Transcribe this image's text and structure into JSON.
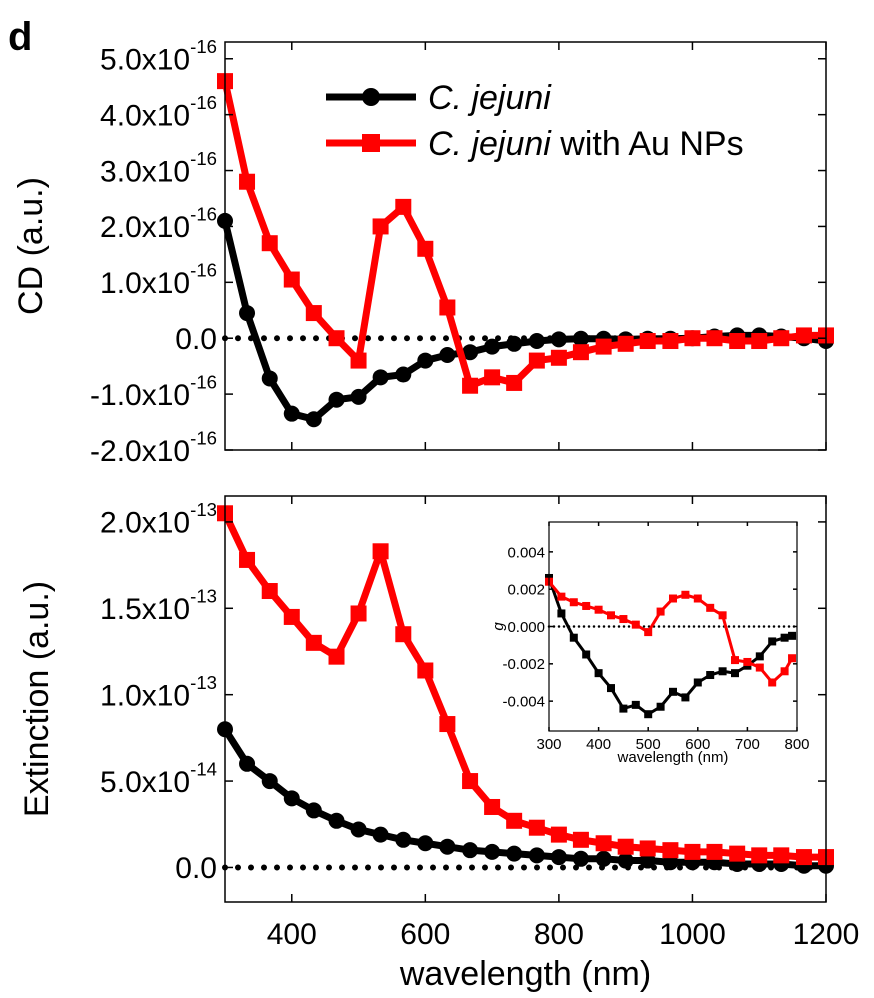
{
  "panel_label": "d",
  "colors": {
    "series_black": "#000000",
    "series_red": "#ff0000",
    "axis": "#000000"
  },
  "legend": {
    "entries": [
      {
        "italic": "C. jejuni",
        "rest": ""
      },
      {
        "italic": "C. jejuni",
        "rest": " with Au NPs"
      }
    ],
    "placement": "top-right"
  },
  "chart_data": [
    {
      "id": "cd",
      "type": "line",
      "ylabel": "CD (a.u.)",
      "xlabel": "",
      "xlim": [
        300,
        1200
      ],
      "ylim": [
        -2e-16,
        5.3e-16
      ],
      "x_ticks": [
        400,
        600,
        800,
        1000,
        1200
      ],
      "y_ticks": [
        {
          "value": 5e-16,
          "mant": "5.0x10",
          "exp": "-16"
        },
        {
          "value": 4e-16,
          "mant": "4.0x10",
          "exp": "-16"
        },
        {
          "value": 3e-16,
          "mant": "3.0x10",
          "exp": "-16"
        },
        {
          "value": 2e-16,
          "mant": "2.0x10",
          "exp": "-16"
        },
        {
          "value": 1e-16,
          "mant": "1.0x10",
          "exp": "-16"
        },
        {
          "value": 0,
          "mant": "0.0",
          "exp": ""
        },
        {
          "value": -1e-16,
          "mant": "-1.0x10",
          "exp": "-16"
        },
        {
          "value": -2e-16,
          "mant": "-2.0x10",
          "exp": "-16"
        }
      ],
      "zero_line": true,
      "series": [
        {
          "color_key": "series_black",
          "marker": "circle",
          "x": [
            300,
            333,
            367,
            400,
            433,
            467,
            500,
            533,
            567,
            600,
            633,
            667,
            700,
            733,
            767,
            800,
            833,
            867,
            900,
            933,
            967,
            1000,
            1033,
            1067,
            1100,
            1133,
            1167,
            1200
          ],
          "y": [
            2.1e-16,
            4.5e-17,
            -7.2e-17,
            -1.35e-16,
            -1.45e-16,
            -1.1e-16,
            -1.05e-16,
            -7e-17,
            -6.5e-17,
            -4e-17,
            -3e-17,
            -2.5e-17,
            -1.5e-17,
            -1e-17,
            -5e-18,
            -2e-18,
            -1e-18,
            -1e-18,
            -2e-18,
            -1e-18,
            -1e-18,
            0.0,
            3e-18,
            5e-18,
            5e-18,
            3e-18,
            0.0,
            -5e-18
          ]
        },
        {
          "color_key": "series_red",
          "marker": "square",
          "x": [
            300,
            333,
            367,
            400,
            433,
            467,
            500,
            533,
            567,
            600,
            633,
            667,
            700,
            733,
            767,
            800,
            833,
            867,
            900,
            933,
            967,
            1000,
            1033,
            1067,
            1100,
            1133,
            1167,
            1200
          ],
          "y": [
            4.6e-16,
            2.8e-16,
            1.7e-16,
            1.05e-16,
            4.5e-17,
            0.0,
            -4e-17,
            2e-16,
            2.35e-16,
            1.6e-16,
            5.5e-17,
            -8.5e-17,
            -7e-17,
            -8e-17,
            -4e-17,
            -3.5e-17,
            -2.5e-17,
            -1.5e-17,
            -1e-17,
            -5e-18,
            -5e-18,
            0.0,
            0.0,
            -5e-18,
            -5e-18,
            0.0,
            5e-18,
            5e-18
          ]
        }
      ]
    },
    {
      "id": "extinction",
      "type": "line",
      "ylabel": "Extinction (a.u.)",
      "xlabel": "wavelength (nm)",
      "xlim": [
        300,
        1200
      ],
      "ylim": [
        -2e-14,
        2.15e-13
      ],
      "x_ticks": [
        400,
        600,
        800,
        1000,
        1200
      ],
      "y_ticks": [
        {
          "value": 2e-13,
          "mant": "2.0x10",
          "exp": "-13"
        },
        {
          "value": 1.5e-13,
          "mant": "1.5x10",
          "exp": "-13"
        },
        {
          "value": 1e-13,
          "mant": "1.0x10",
          "exp": "-13"
        },
        {
          "value": 5e-14,
          "mant": "5.0x10",
          "exp": "-14"
        },
        {
          "value": 0,
          "mant": "0.0",
          "exp": ""
        }
      ],
      "zero_line": true,
      "series": [
        {
          "color_key": "series_black",
          "marker": "circle",
          "x": [
            300,
            333,
            367,
            400,
            433,
            467,
            500,
            533,
            567,
            600,
            633,
            667,
            700,
            733,
            767,
            800,
            833,
            867,
            900,
            933,
            967,
            1000,
            1033,
            1067,
            1100,
            1133,
            1167,
            1200
          ],
          "y": [
            8e-14,
            6e-14,
            5e-14,
            4e-14,
            3.3e-14,
            2.7e-14,
            2.2e-14,
            1.9e-14,
            1.6e-14,
            1.4e-14,
            1.2e-14,
            1e-14,
            9e-15,
            8e-15,
            7e-15,
            6e-15,
            5e-15,
            5e-15,
            4e-15,
            4e-15,
            3e-15,
            3e-15,
            3e-15,
            2e-15,
            2e-15,
            2e-15,
            1e-15,
            1e-15
          ]
        },
        {
          "color_key": "series_red",
          "marker": "square",
          "x": [
            300,
            333,
            367,
            400,
            433,
            467,
            500,
            533,
            567,
            600,
            633,
            667,
            700,
            733,
            767,
            800,
            833,
            867,
            900,
            933,
            967,
            1000,
            1033,
            1067,
            1100,
            1133,
            1167,
            1200
          ],
          "y": [
            2.05e-13,
            1.78e-13,
            1.6e-13,
            1.45e-13,
            1.3e-13,
            1.22e-13,
            1.47e-13,
            1.83e-13,
            1.35e-13,
            1.14e-13,
            8.3e-14,
            5e-14,
            3.5e-14,
            2.7e-14,
            2.3e-14,
            1.9e-14,
            1.6e-14,
            1.4e-14,
            1.2e-14,
            1.1e-14,
            1e-14,
            9e-15,
            9e-15,
            8e-15,
            7e-15,
            7e-15,
            6e-15,
            6e-15
          ]
        }
      ]
    },
    {
      "id": "g_inset",
      "type": "line",
      "ylabel": "g",
      "xlabel": "wavelength (nm)",
      "xlim": [
        300,
        800
      ],
      "ylim": [
        -0.0056,
        0.0056
      ],
      "x_ticks": [
        300,
        400,
        500,
        600,
        700,
        800
      ],
      "y_ticks": [
        {
          "value": 0.004,
          "mant": "0.004",
          "exp": ""
        },
        {
          "value": 0.002,
          "mant": "0.002",
          "exp": ""
        },
        {
          "value": 0.0,
          "mant": "0.000",
          "exp": ""
        },
        {
          "value": -0.002,
          "mant": "-0.002",
          "exp": ""
        },
        {
          "value": -0.004,
          "mant": "-0.004",
          "exp": ""
        }
      ],
      "zero_line": true,
      "series": [
        {
          "color_key": "series_black",
          "marker": "square",
          "x": [
            300,
            325,
            350,
            375,
            400,
            425,
            450,
            475,
            500,
            525,
            550,
            575,
            600,
            625,
            650,
            675,
            700,
            725,
            750,
            775,
            790
          ],
          "y": [
            0.0026,
            0.0007,
            -0.0006,
            -0.0015,
            -0.0025,
            -0.0033,
            -0.0044,
            -0.0042,
            -0.0047,
            -0.0043,
            -0.0035,
            -0.0038,
            -0.003,
            -0.0026,
            -0.0024,
            -0.0025,
            -0.0021,
            -0.0016,
            -0.0008,
            -0.0006,
            -0.0005
          ]
        },
        {
          "color_key": "series_red",
          "marker": "square",
          "x": [
            300,
            325,
            350,
            375,
            400,
            425,
            450,
            475,
            500,
            525,
            550,
            575,
            600,
            625,
            650,
            675,
            700,
            725,
            750,
            775,
            790
          ],
          "y": [
            0.0024,
            0.0016,
            0.0013,
            0.0011,
            0.0009,
            0.0006,
            0.0004,
            0.0001,
            -0.0003,
            0.0008,
            0.0015,
            0.0017,
            0.0015,
            0.001,
            0.0006,
            -0.0018,
            -0.0019,
            -0.0022,
            -0.003,
            -0.0024,
            -0.0017
          ]
        }
      ]
    }
  ]
}
